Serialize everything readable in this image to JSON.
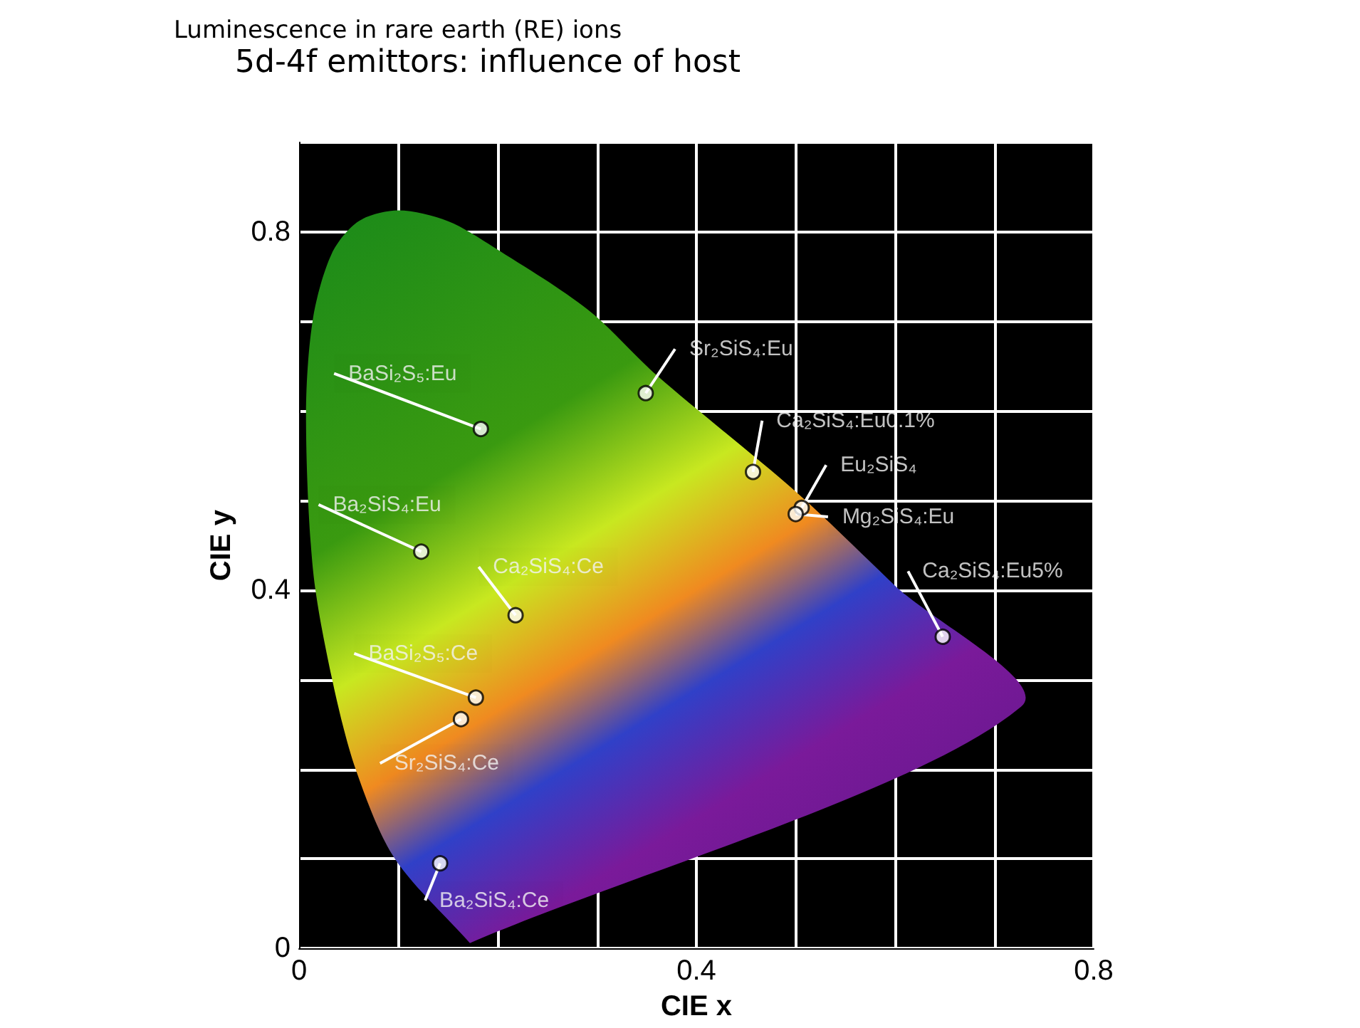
{
  "chart_data": {
    "type": "scatter",
    "title": "Luminescence in rare earth (RE) ions",
    "subtitle": "5d-4f emittors: influence of host",
    "xlabel": "CIE x",
    "ylabel": "CIE y",
    "xlim": [
      0,
      0.8
    ],
    "xticks": [
      0,
      {
        "value": 0.1,
        "label": null
      },
      {
        "value": 0.2,
        "label": null
      },
      {
        "value": 0.3,
        "label": null
      },
      0.4,
      {
        "value": 0.5,
        "label": null
      },
      {
        "value": 0.6,
        "label": null
      },
      {
        "value": 0.7,
        "label": null
      },
      0.8
    ],
    "ylim": [
      0,
      0.9
    ],
    "yticks": [
      0,
      {
        "value": 0.1,
        "label": null
      },
      {
        "value": 0.2,
        "label": null
      },
      {
        "value": 0.3,
        "label": null
      },
      0.4,
      {
        "value": 0.5,
        "label": null
      },
      {
        "value": 0.6,
        "label": null
      },
      {
        "value": 0.7,
        "label": null
      },
      0.8,
      {
        "value": 0.9,
        "label": null
      }
    ],
    "grid": true,
    "series": [
      {
        "type": "area",
        "x": [
          0.172,
          0.096,
          0.057,
          0.033,
          0.014,
          0.007,
          0.014,
          0.033,
          0.06,
          0.1,
          0.15,
          0.196,
          0.291,
          0.36,
          0.5,
          0.6,
          0.727,
          0.172
        ],
        "values": [
          0.006,
          0.101,
          0.2,
          0.302,
          0.423,
          0.597,
          0.703,
          0.776,
          0.812,
          0.824,
          0.812,
          0.783,
          0.713,
          0.64,
          0.51,
          0.405,
          0.27,
          0.006
        ]
      },
      {
        "color": "#ffffff",
        "marker": "circle",
        "x": [
          0.349,
          0.183,
          0.457,
          0.506,
          0.5,
          0.123,
          0.218,
          0.648,
          0.178,
          0.163,
          0.142
        ],
        "values": [
          0.62,
          0.58,
          0.532,
          0.492,
          0.485,
          0.443,
          0.372,
          0.348,
          0.28,
          0.256,
          0.095
        ]
      }
    ],
    "annotations": [
      {
        "text": "Sr₂SiS₄:Eu",
        "x": 0.349,
        "y": 0.62
      },
      {
        "text": "BaSi₂S₅:Eu",
        "x": 0.183,
        "y": 0.58
      },
      {
        "text": "Ca₂SiS₄:Eu0.1%",
        "x": 0.457,
        "y": 0.532
      },
      {
        "text": "Eu₂SiS₄",
        "x": 0.506,
        "y": 0.492
      },
      {
        "text": "Mg₂SiS₄:Eu",
        "x": 0.5,
        "y": 0.485
      },
      {
        "text": "Ba₂SiS₄:Eu",
        "x": 0.123,
        "y": 0.443
      },
      {
        "text": "Ca₂SiS₄:Ce",
        "x": 0.218,
        "y": 0.372
      },
      {
        "text": "Ca₂SiS₄:Eu5%",
        "x": 0.648,
        "y": 0.348
      },
      {
        "text": "BaSi₂S₅:Ce",
        "x": 0.178,
        "y": 0.28
      },
      {
        "text": "Sr₂SiS₄:Ce",
        "x": 0.163,
        "y": 0.256
      },
      {
        "text": "Ba₂SiS₄:Ce",
        "x": 0.142,
        "y": 0.095
      }
    ]
  }
}
